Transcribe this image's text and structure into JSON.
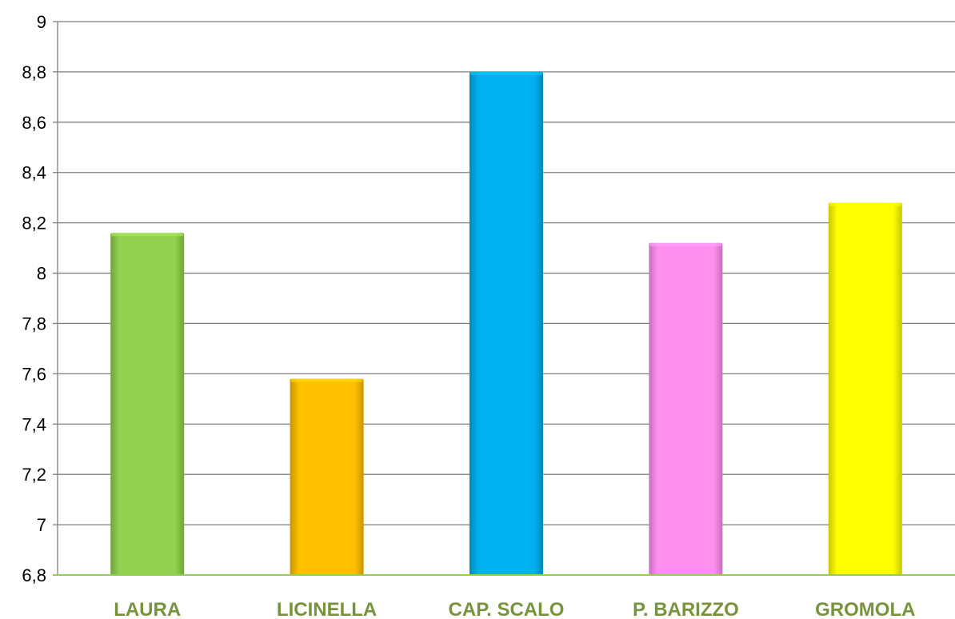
{
  "chart_data": {
    "type": "bar",
    "title": "",
    "xlabel": "",
    "ylabel": "",
    "categories": [
      "LAURA",
      "LICINELLA",
      "CAP. SCALO",
      "P. BARIZZO",
      "GROMOLA"
    ],
    "values": [
      8.16,
      7.58,
      8.8,
      8.12,
      8.28
    ],
    "bar_colors": [
      "#92D050",
      "#FFC000",
      "#00B0F0",
      "#FF8FEF",
      "#FFFF00"
    ],
    "ylim": [
      6.8,
      9
    ],
    "yticks": [
      {
        "value": 6.8,
        "label": "6,8"
      },
      {
        "value": 7.0,
        "label": "7"
      },
      {
        "value": 7.2,
        "label": "7,2"
      },
      {
        "value": 7.4,
        "label": "7,4"
      },
      {
        "value": 7.6,
        "label": "7,6"
      },
      {
        "value": 7.8,
        "label": "7,8"
      },
      {
        "value": 8.0,
        "label": "8"
      },
      {
        "value": 8.2,
        "label": "8,2"
      },
      {
        "value": 8.4,
        "label": "8,4"
      },
      {
        "value": 8.6,
        "label": "8,6"
      },
      {
        "value": 8.8,
        "label": "8,8"
      },
      {
        "value": 9.0,
        "label": "9"
      }
    ],
    "grid": true,
    "legend": "none",
    "category_label_color": "#77933C",
    "baseline_color": "#92D050",
    "gridline_color": "#7F7F7F"
  }
}
